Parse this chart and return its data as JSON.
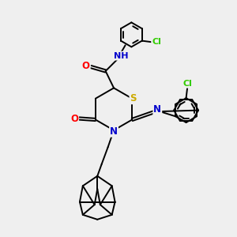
{
  "bg_color": "#efefef",
  "atom_colors": {
    "N": "#0000cc",
    "O": "#ff0000",
    "S": "#ccaa00",
    "Cl": "#33cc00",
    "C": "#000000",
    "H": "#444444"
  },
  "bond_color": "#000000",
  "bond_width": 1.4,
  "figsize": [
    3.0,
    3.0
  ],
  "dpi": 100
}
